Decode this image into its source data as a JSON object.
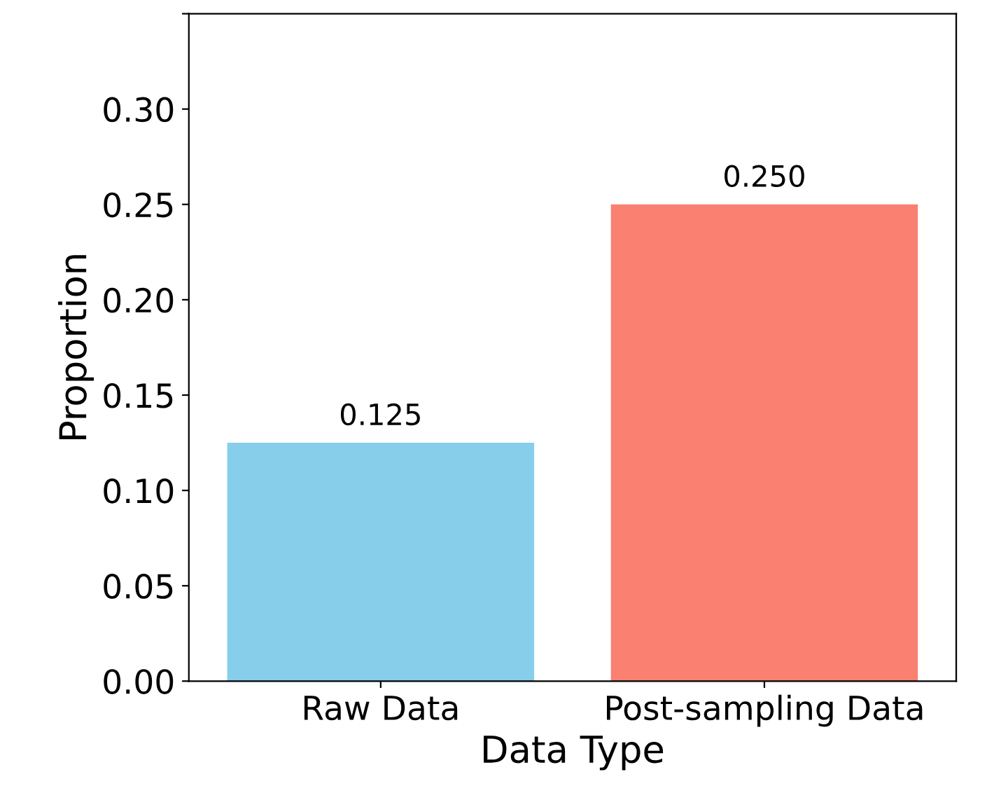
{
  "chart_data": {
    "type": "bar",
    "xlabel": "Data Type",
    "ylabel": "Proportion",
    "categories": [
      "Raw Data",
      "Post-sampling Data"
    ],
    "values": [
      0.125,
      0.25
    ],
    "colors": [
      "#87ceeb",
      "#fa8072"
    ],
    "value_labels": [
      "0.125",
      "0.250"
    ],
    "ylim": [
      0,
      0.35
    ],
    "yticks": [
      {
        "value": 0,
        "label": "0.00"
      },
      {
        "value": 0.05,
        "label": "0.05"
      },
      {
        "value": 0.1,
        "label": "0.10"
      },
      {
        "value": 0.15,
        "label": "0.15"
      },
      {
        "value": 0.2,
        "label": "0.20"
      },
      {
        "value": 0.25,
        "label": "0.25"
      },
      {
        "value": 0.3,
        "label": "0.30"
      },
      {
        "value": 0.35,
        "label": null
      }
    ],
    "grid": false,
    "legend": false
  }
}
